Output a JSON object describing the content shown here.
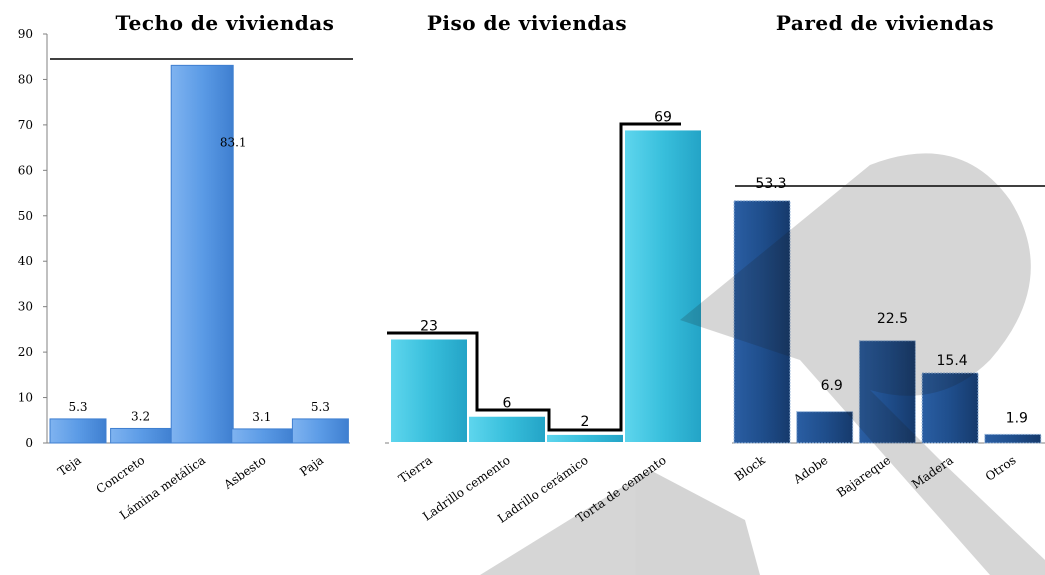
{
  "chart_data": [
    {
      "type": "bar",
      "title": "Techo de viviendas",
      "categories": [
        "Teja",
        "Concreto",
        "Lámina metálica",
        "Asbesto",
        "Paja"
      ],
      "values": [
        5.3,
        3.2,
        83.1,
        3.1,
        5.3
      ],
      "ylim": [
        0,
        90
      ],
      "yticks": [
        "0",
        "10",
        "20",
        "30",
        "40",
        "50",
        "60",
        "70",
        "80",
        "90"
      ],
      "color": "#5b9be6"
    },
    {
      "type": "bar",
      "title": "Piso de viviendas",
      "categories": [
        "Tierra",
        "Ladrillo cemento",
        "Ladrillo cerámico",
        "Torta de cemento"
      ],
      "values": [
        23,
        6,
        2,
        69
      ],
      "ylim": [
        0,
        90
      ],
      "color": "#3cc3df"
    },
    {
      "type": "bar",
      "title": "Pared de viviendas",
      "categories": [
        "Block",
        "Adobe",
        "Bajareque",
        "Madera",
        "Otros"
      ],
      "values": [
        53.3,
        6.9,
        22.5,
        15.4,
        1.9
      ],
      "ylim": [
        0,
        90
      ],
      "color": "#1f4e8c"
    }
  ]
}
